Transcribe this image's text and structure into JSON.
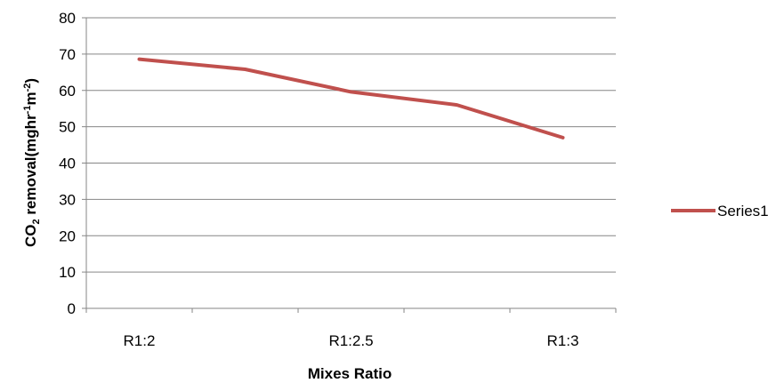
{
  "chart_data": {
    "type": "line",
    "categories": [
      "R1:2",
      "",
      "R1:2.5",
      "",
      "R1:3"
    ],
    "series": [
      {
        "name": "Series1",
        "values": [
          68.6,
          65.8,
          59.6,
          56.0,
          47.0
        ],
        "color": "#c0504d"
      }
    ],
    "xlabel": "Mixes  Ratio",
    "ylabel": {
      "prefix": "CO",
      "sub": "2",
      "mid1": " removal(mghr",
      "sup1": "-1",
      "mid2": "m",
      "sup2": "-2",
      "suffix": ")"
    },
    "ylim": [
      0,
      80
    ],
    "yticks": [
      "0",
      "10",
      "20",
      "30",
      "40",
      "50",
      "60",
      "70",
      "80"
    ],
    "xtick_labels": [
      "R1:2",
      "R1:2.5",
      "R1:3"
    ],
    "grid": true,
    "legend": "right",
    "gridline_color": "#868686",
    "axis_color": "#868686"
  }
}
